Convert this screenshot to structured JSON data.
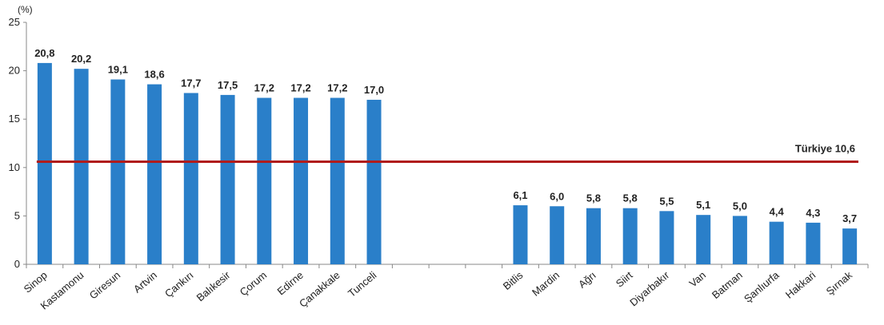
{
  "chart_data": {
    "type": "bar",
    "unit_label": "(%)",
    "ylim": [
      0,
      25
    ],
    "yticks": [
      0,
      5,
      10,
      15,
      20,
      25
    ],
    "grid": false,
    "bar_color": "#2a7fc9",
    "reference_color": "#b01c1c",
    "categories": [
      "Sinop",
      "Kastamonu",
      "Giresun",
      "Artvin",
      "Çankırı",
      "Balıkesir",
      "Çorum",
      "Edirne",
      "Çanakkale",
      "Tunceli",
      "",
      "",
      "",
      "Bitlis",
      "Mardin",
      "Ağrı",
      "Siirt",
      "Diyarbakır",
      "Van",
      "Batman",
      "Şanlıurfa",
      "Hakkari",
      "Şırnak"
    ],
    "values": [
      20.8,
      20.2,
      19.1,
      18.6,
      17.7,
      17.5,
      17.2,
      17.2,
      17.2,
      17.0,
      null,
      null,
      null,
      6.1,
      6.0,
      5.8,
      5.8,
      5.5,
      5.1,
      5.0,
      4.4,
      4.3,
      3.7
    ],
    "value_labels": [
      "20,8",
      "20,2",
      "19,1",
      "18,6",
      "17,7",
      "17,5",
      "17,2",
      "17,2",
      "17,2",
      "17,0",
      "",
      "",
      "",
      "6,1",
      "6,0",
      "5,8",
      "5,8",
      "5,5",
      "5,1",
      "5,0",
      "4,4",
      "4,3",
      "3,7"
    ],
    "reference_line": {
      "value": 10.6,
      "label": "Türkiye  10,6"
    }
  }
}
